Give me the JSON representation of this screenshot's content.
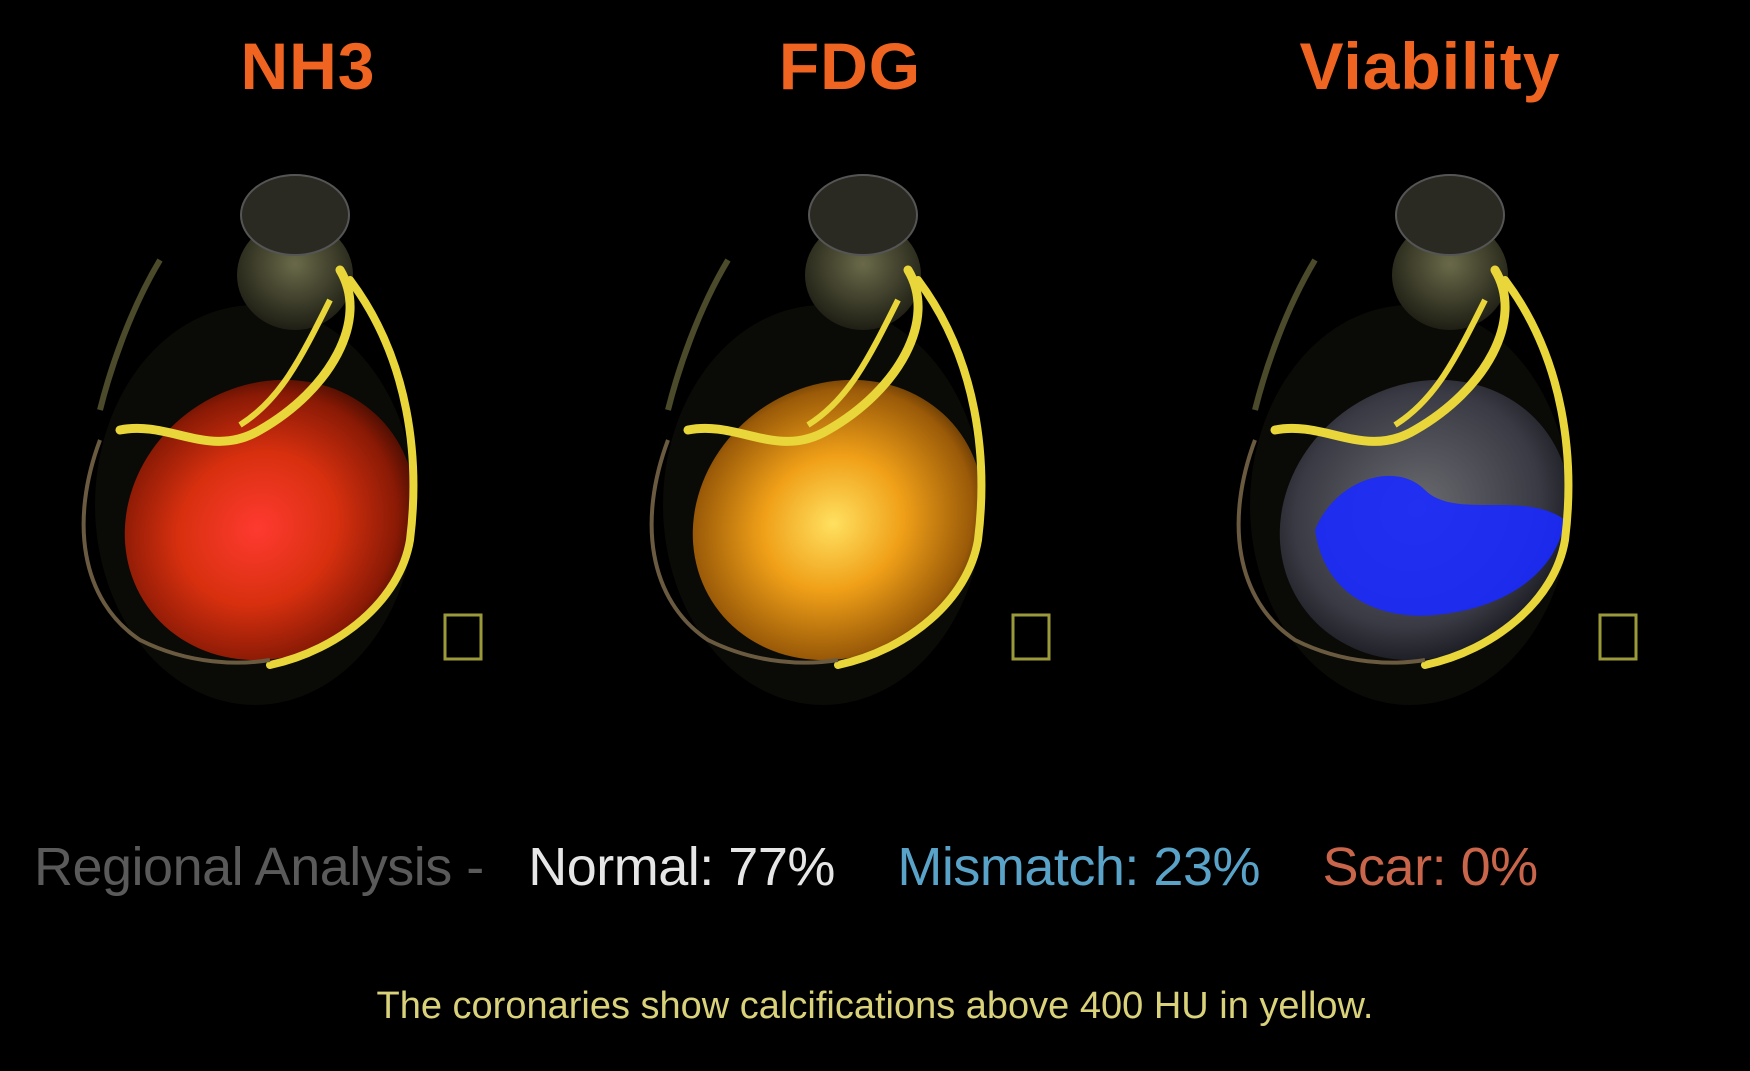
{
  "titles": {
    "nh3": "NH3",
    "fdg": "FDG",
    "viability": "Viability"
  },
  "analysis": {
    "regional_label": "Regional Analysis -",
    "normal": "Normal: 77%",
    "mismatch": "Mismatch: 23%",
    "scar": "Scar: 0%"
  },
  "caption": "The coronaries show calcifications above 400 HU in yellow.",
  "colors": {
    "title": "#ee6420",
    "regional": "#5a5a5a",
    "normal": "#e6e6e6",
    "mismatch": "#5aa3c8",
    "scar": "#c8654a",
    "caption": "#d9d27a",
    "vessels": "#e8d63a"
  }
}
